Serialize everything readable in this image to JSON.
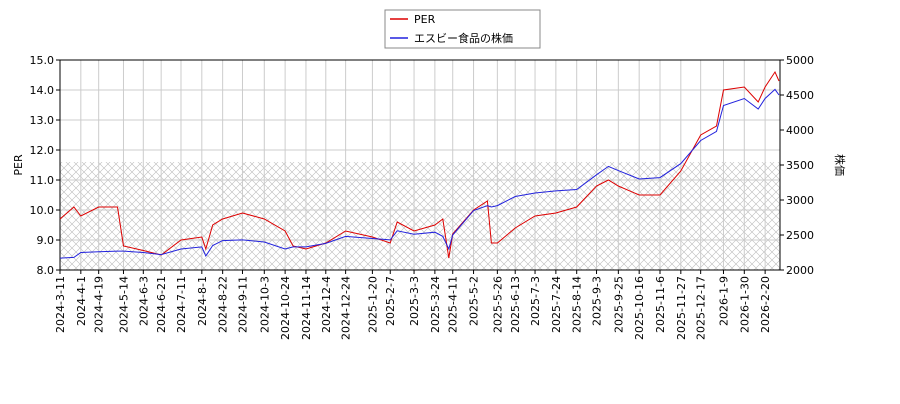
{
  "chart_data": {
    "type": "line",
    "legend": "upper center",
    "grid": true,
    "x": [
      "2024-3-11",
      "2024-3-25",
      "2024-4-1",
      "2024-4-19",
      "2024-5-8",
      "2024-5-14",
      "2024-6-3",
      "2024-6-21",
      "2024-7-11",
      "2024-8-1",
      "2024-8-5",
      "2024-8-12",
      "2024-8-22",
      "2024-9-11",
      "2024-10-3",
      "2024-10-24",
      "2024-11-1",
      "2024-11-14",
      "2024-12-4",
      "2024-12-24",
      "2025-1-20",
      "2025-2-7",
      "2025-2-14",
      "2025-3-3",
      "2025-3-24",
      "2025-4-1",
      "2025-4-7",
      "2025-4-11",
      "2025-5-2",
      "2025-5-16",
      "2025-5-20",
      "2025-5-26",
      "2025-6-13",
      "2025-7-3",
      "2025-7-24",
      "2025-8-14",
      "2025-9-3",
      "2025-9-15",
      "2025-9-25",
      "2025-10-16",
      "2025-11-6",
      "2025-11-27",
      "2025-12-17",
      "2026-1-2",
      "2026-1-9",
      "2026-1-30",
      "2026-2-13",
      "2026-2-20",
      "2026-3-2",
      "2026-3-6"
    ],
    "xlim": [
      "2024-3-11",
      "2026-3-7"
    ],
    "xticks": [
      "2024-3-11",
      "2024-4-1",
      "2024-4-19",
      "2024-5-14",
      "2024-6-3",
      "2024-6-21",
      "2024-7-11",
      "2024-8-1",
      "2024-8-22",
      "2024-9-11",
      "2024-10-3",
      "2024-10-24",
      "2024-11-14",
      "2024-12-4",
      "2024-12-24",
      "2025-1-20",
      "2025-2-7",
      "2025-3-3",
      "2025-3-24",
      "2025-4-11",
      "2025-5-2",
      "2025-5-26",
      "2025-6-13",
      "2025-7-3",
      "2025-7-24",
      "2025-8-14",
      "2025-9-3",
      "2025-9-25",
      "2025-10-16",
      "2025-11-6",
      "2025-11-27",
      "2025-12-17",
      "2026-1-9",
      "2026-1-30",
      "2026-2-20"
    ],
    "ylabel": "PER",
    "y2label": "株価",
    "ylim": [
      8,
      15
    ],
    "yticks": [
      {
        "value": 8,
        "label": "8.0"
      },
      {
        "value": 9,
        "label": "9.0"
      },
      {
        "value": 10,
        "label": "10.0"
      },
      {
        "value": 11,
        "label": "11.0"
      },
      {
        "value": 12,
        "label": "12.0"
      },
      {
        "value": 13,
        "label": "13.0"
      },
      {
        "value": 14,
        "label": "14.0"
      },
      {
        "value": 15,
        "label": "15.0"
      }
    ],
    "y2lim": [
      2000,
      5000
    ],
    "y2ticks": [
      2000,
      2500,
      3000,
      3500,
      4000,
      4500,
      5000
    ],
    "hatch_range": [
      8,
      11.6
    ],
    "series": [
      {
        "name": "PER",
        "color": "#dd0000",
        "values": [
          9.7,
          10.1,
          9.8,
          10.1,
          10.1,
          8.8,
          8.65,
          8.5,
          9.0,
          9.1,
          8.7,
          9.5,
          9.7,
          9.9,
          9.7,
          9.3,
          8.8,
          8.7,
          8.9,
          9.3,
          9.1,
          8.9,
          9.6,
          9.3,
          9.5,
          9.7,
          8.4,
          9.2,
          10.0,
          10.3,
          8.9,
          8.9,
          9.4,
          9.8,
          9.9,
          10.1,
          10.8,
          11.0,
          10.8,
          10.5,
          10.5,
          11.3,
          12.5,
          12.8,
          14.0,
          14.1,
          13.6,
          14.1,
          14.6,
          14.3
        ]
      },
      {
        "name": "エスビー食品の株価",
        "color": "#2222dd",
        "axis": "y2",
        "values": [
          2170,
          2180,
          2250,
          2260,
          2270,
          2270,
          2250,
          2220,
          2300,
          2330,
          2200,
          2350,
          2420,
          2430,
          2400,
          2300,
          2330,
          2330,
          2380,
          2480,
          2450,
          2430,
          2560,
          2510,
          2540,
          2480,
          2300,
          2500,
          2850,
          2920,
          2900,
          2920,
          3050,
          3100,
          3130,
          3150,
          3360,
          3480,
          3420,
          3300,
          3320,
          3520,
          3850,
          3980,
          4350,
          4450,
          4300,
          4450,
          4580,
          4500
        ]
      }
    ]
  }
}
